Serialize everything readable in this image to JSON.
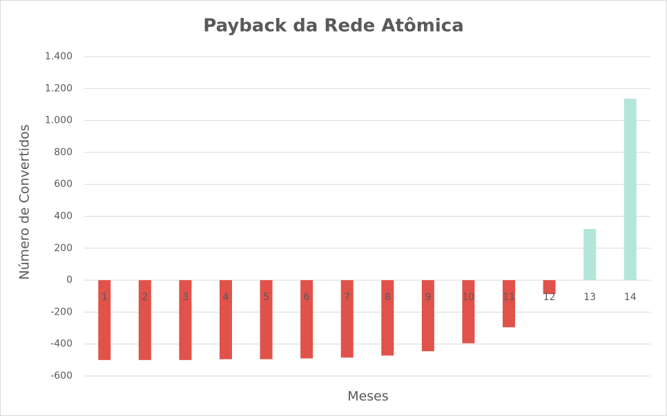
{
  "chart_data": {
    "type": "bar",
    "title": "Payback da Rede Atômica",
    "x_label": "Meses",
    "y_label": "Número de Convertidos",
    "categories": [
      "1",
      "2",
      "3",
      "4",
      "5",
      "6",
      "7",
      "8",
      "9",
      "10",
      "11",
      "12",
      "13",
      "14"
    ],
    "values": [
      -500,
      -500,
      -500,
      -495,
      -495,
      -490,
      -485,
      -472,
      -445,
      -395,
      -295,
      -87,
      320,
      1136
    ],
    "colors": [
      "#e0524a",
      "#e0524a",
      "#e0524a",
      "#e0524a",
      "#e0524a",
      "#e0524a",
      "#e0524a",
      "#e0524a",
      "#e0524a",
      "#e0524a",
      "#e0524a",
      "#e0524a",
      "#b3e5d9",
      "#b3e5d9"
    ],
    "ylim": [
      -600,
      1400
    ],
    "yticks": [
      -600,
      -400,
      -200,
      0,
      200,
      400,
      600,
      800,
      {
        "value": 1000,
        "label": "1.000"
      },
      {
        "value": 1200,
        "label": "1.200"
      },
      {
        "value": 1400,
        "label": "1.400"
      }
    ],
    "grid": true
  }
}
